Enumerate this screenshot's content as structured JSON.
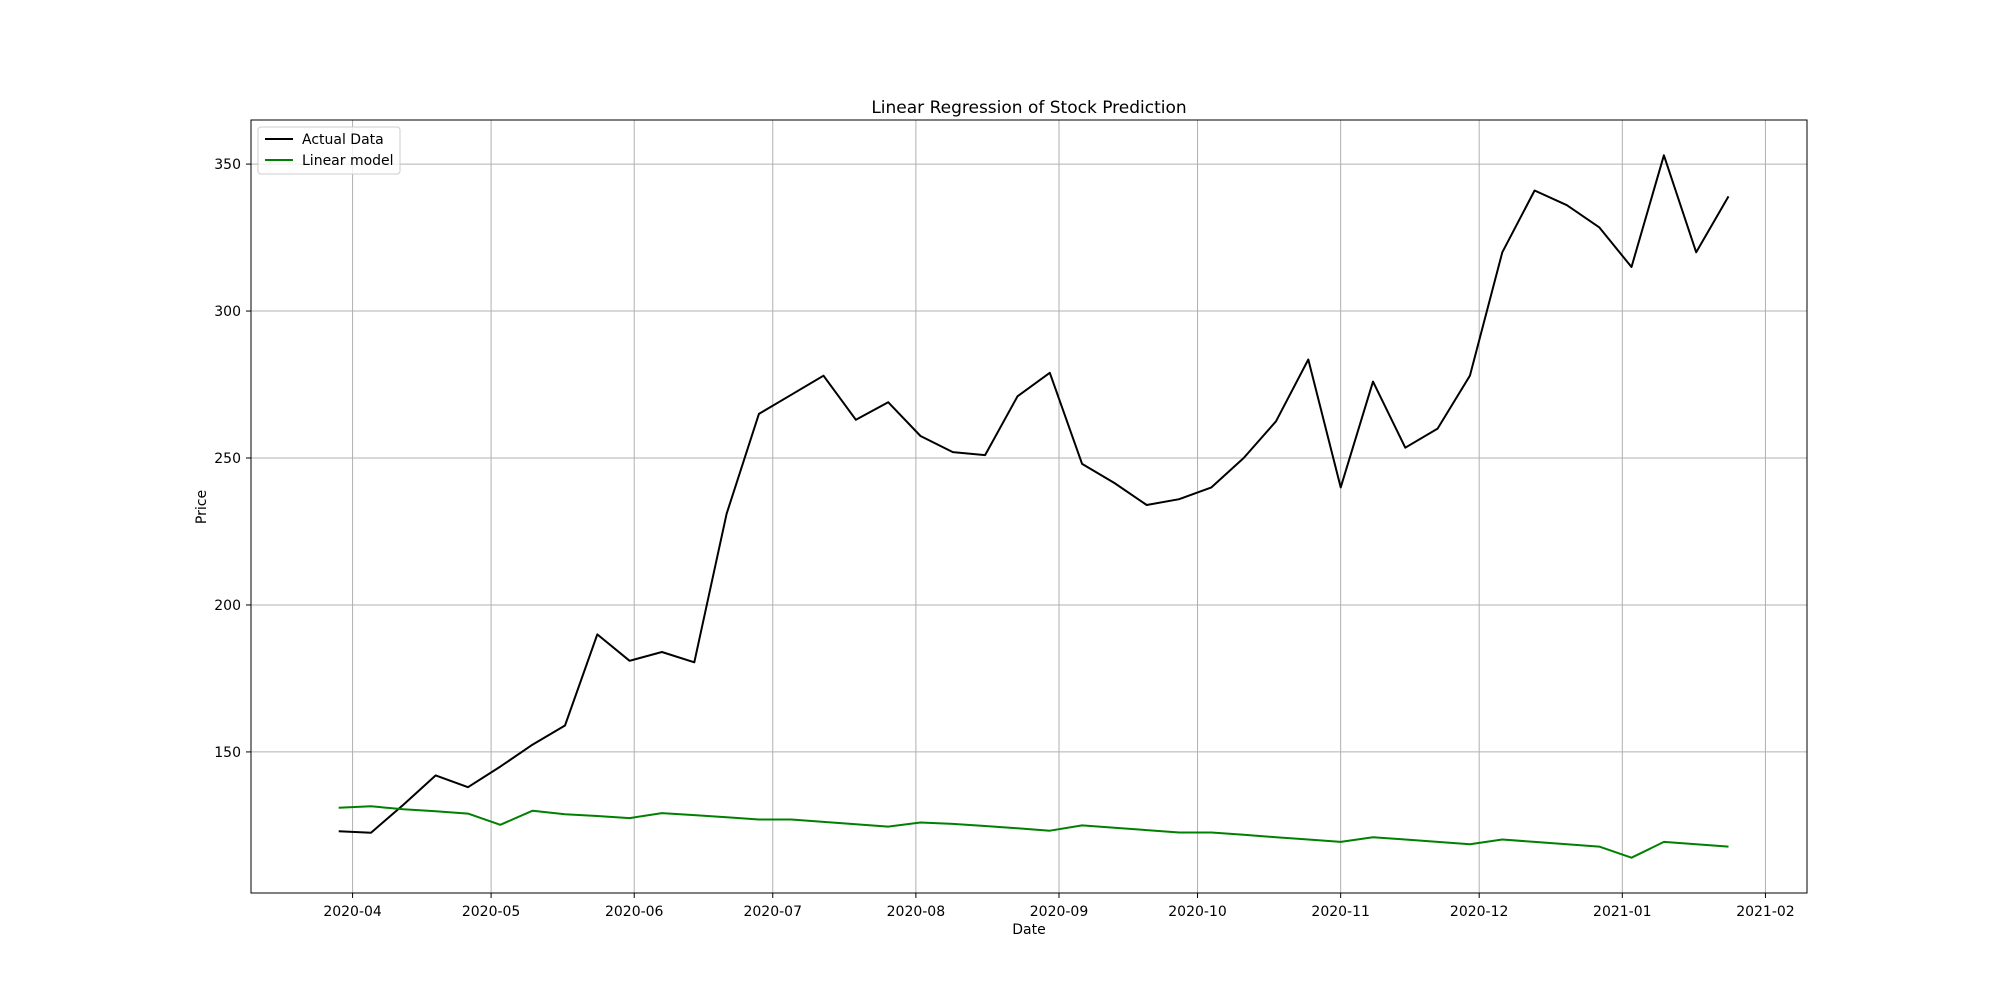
{
  "chart_data": {
    "type": "line",
    "title": "Linear Regression of Stock Prediction",
    "xlabel": "Date",
    "ylabel": "Price",
    "grid": true,
    "legend_position": "top-left",
    "ylim": [
      102,
      365
    ],
    "yticks": [
      150,
      200,
      250,
      300,
      350
    ],
    "xlim": [
      "2020-03-10",
      "2021-02-10"
    ],
    "xticks": [
      "2020-04-01",
      "2020-05-01",
      "2020-06-01",
      "2020-07-01",
      "2020-08-01",
      "2020-09-01",
      "2020-10-01",
      "2020-11-01",
      "2020-12-01",
      "2021-01-01",
      "2021-02-01"
    ],
    "xtick_labels": [
      "2020-04",
      "2020-05",
      "2020-06",
      "2020-07",
      "2020-08",
      "2020-09",
      "2020-10",
      "2020-11",
      "2020-12",
      "2021-01",
      "2021-02"
    ],
    "x": [
      "2020-03-29",
      "2020-04-05",
      "2020-04-12",
      "2020-04-19",
      "2020-04-26",
      "2020-05-03",
      "2020-05-10",
      "2020-05-17",
      "2020-05-24",
      "2020-05-31",
      "2020-06-07",
      "2020-06-14",
      "2020-06-21",
      "2020-06-28",
      "2020-07-05",
      "2020-07-12",
      "2020-07-19",
      "2020-07-26",
      "2020-08-02",
      "2020-08-09",
      "2020-08-16",
      "2020-08-23",
      "2020-08-30",
      "2020-09-06",
      "2020-09-13",
      "2020-09-20",
      "2020-09-27",
      "2020-10-04",
      "2020-10-11",
      "2020-10-18",
      "2020-10-25",
      "2020-11-01",
      "2020-11-08",
      "2020-11-15",
      "2020-11-22",
      "2020-11-29",
      "2020-12-06",
      "2020-12-13",
      "2020-12-20",
      "2020-12-27",
      "2021-01-03",
      "2021-01-10",
      "2021-01-17",
      "2021-01-24"
    ],
    "series": [
      {
        "name": "Actual Data",
        "color": "#000000",
        "values": [
          123,
          122.5,
          132,
          142,
          138,
          145,
          152.5,
          159,
          190,
          181,
          184,
          180.5,
          231,
          265,
          271.5,
          278,
          263,
          269,
          257.5,
          252,
          251,
          271,
          279,
          248,
          241.5,
          234,
          236,
          240,
          250,
          262.5,
          283.5,
          240,
          276,
          253.5,
          260,
          278,
          320,
          341,
          336,
          328.5,
          315,
          353,
          320,
          339
        ]
      },
      {
        "name": "Linear model",
        "color": "#008000",
        "values": [
          131,
          131.5,
          130.5,
          129.8,
          129,
          125.2,
          130,
          128.8,
          128.2,
          127.5,
          129.2,
          128.5,
          127.8,
          127,
          127,
          126.2,
          125.4,
          124.6,
          126,
          125.5,
          124.8,
          124,
          123.2,
          125,
          124.2,
          123.4,
          122.6,
          122.6,
          121.8,
          121,
          120.2,
          119.4,
          121,
          120.2,
          119.4,
          118.6,
          120.2,
          119.4,
          118.6,
          117.8,
          114,
          119.4,
          118.6,
          117.8
        ]
      }
    ]
  }
}
